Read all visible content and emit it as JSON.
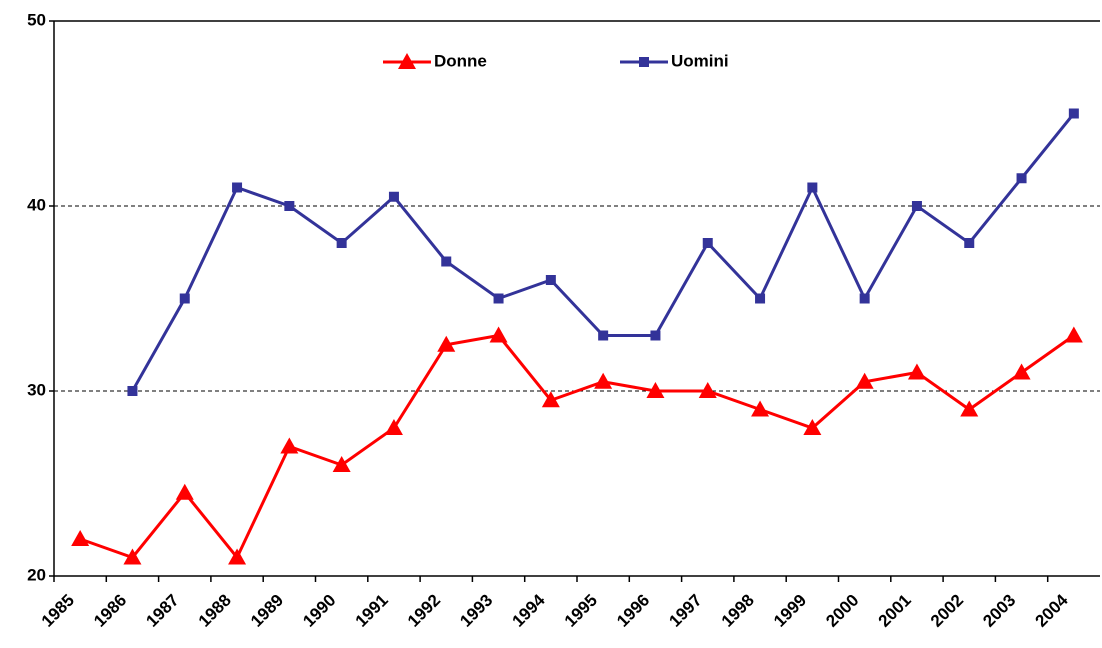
{
  "chart_data": {
    "type": "line",
    "categories": [
      "1985",
      "1986",
      "1987",
      "1988",
      "1989",
      "1990",
      "1991",
      "1992",
      "1993",
      "1994",
      "1995",
      "1996",
      "1997",
      "1998",
      "1999",
      "2000",
      "2001",
      "2002",
      "2003",
      "2004"
    ],
    "series": [
      {
        "name": "Donne",
        "color": "#ff0000",
        "marker": "triangle",
        "values": [
          22,
          21,
          24.5,
          21,
          27,
          26,
          28,
          32.5,
          33,
          29.5,
          30.5,
          30,
          30,
          29,
          28,
          30.5,
          31,
          29,
          31,
          33
        ]
      },
      {
        "name": "Uomini",
        "color": "#333399",
        "marker": "square",
        "values": [
          null,
          30,
          35,
          41,
          40,
          38,
          40.5,
          37,
          35,
          36,
          33,
          33,
          38,
          35,
          41,
          35,
          40,
          38,
          41.5,
          45
        ]
      }
    ],
    "ylim": [
      20,
      50
    ],
    "yticks": [
      20,
      30,
      40,
      50
    ],
    "grid": true,
    "legend": "top"
  }
}
